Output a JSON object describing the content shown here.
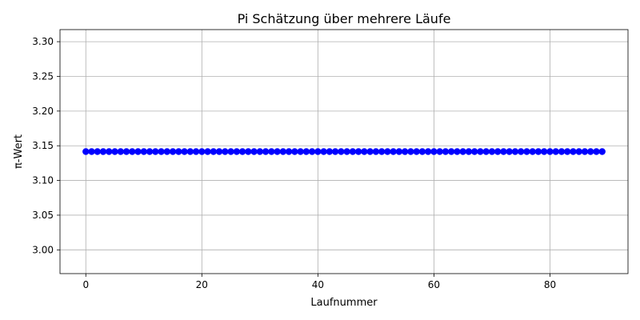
{
  "chart_data": {
    "type": "scatter",
    "title": "Pi Schätzung über mehrere Läufe",
    "xlabel": "Laufnummer",
    "ylabel": "π-Wert",
    "xlim": [
      -4.45,
      93.45
    ],
    "ylim": [
      2.9658,
      3.3174
    ],
    "grid": true,
    "marker": "circle",
    "color": "#0000ff",
    "x_ticks": [
      0,
      20,
      40,
      60,
      80
    ],
    "x_tick_labels": [
      "0",
      "20",
      "40",
      "60",
      "80"
    ],
    "y_ticks": [
      3.0,
      3.05,
      3.1,
      3.15,
      3.2,
      3.25,
      3.3
    ],
    "y_tick_labels": [
      "3.00",
      "3.05",
      "3.10",
      "3.15",
      "3.20",
      "3.25",
      "3.30"
    ],
    "series": [
      {
        "x": [
          0,
          1,
          2,
          3,
          4,
          5,
          6,
          7,
          8,
          9,
          10,
          11,
          12,
          13,
          14,
          15,
          16,
          17,
          18,
          19,
          20,
          21,
          22,
          23,
          24,
          25,
          26,
          27,
          28,
          29,
          30,
          31,
          32,
          33,
          34,
          35,
          36,
          37,
          38,
          39,
          40,
          41,
          42,
          43,
          44,
          45,
          46,
          47,
          48,
          49,
          50,
          51,
          52,
          53,
          54,
          55,
          56,
          57,
          58,
          59,
          60,
          61,
          62,
          63,
          64,
          65,
          66,
          67,
          68,
          69,
          70,
          71,
          72,
          73,
          74,
          75,
          76,
          77,
          78,
          79,
          80,
          81,
          82,
          83,
          84,
          85,
          86,
          87,
          88,
          89
        ],
        "y": [
          3.1416,
          3.1416,
          3.1416,
          3.1416,
          3.1416,
          3.1416,
          3.1416,
          3.1416,
          3.1416,
          3.1416,
          3.1416,
          3.1416,
          3.1416,
          3.1416,
          3.1416,
          3.1416,
          3.1416,
          3.1416,
          3.1416,
          3.1416,
          3.1416,
          3.1416,
          3.1416,
          3.1416,
          3.1416,
          3.1416,
          3.1416,
          3.1416,
          3.1416,
          3.1416,
          3.1416,
          3.1416,
          3.1416,
          3.1416,
          3.1416,
          3.1416,
          3.1416,
          3.1416,
          3.1416,
          3.1416,
          3.1416,
          3.1416,
          3.1416,
          3.1416,
          3.1416,
          3.1416,
          3.1416,
          3.1416,
          3.1416,
          3.1416,
          3.1416,
          3.1416,
          3.1416,
          3.1416,
          3.1416,
          3.1416,
          3.1416,
          3.1416,
          3.1416,
          3.1416,
          3.1416,
          3.1416,
          3.1416,
          3.1416,
          3.1416,
          3.1416,
          3.1416,
          3.1416,
          3.1416,
          3.1416,
          3.1416,
          3.1416,
          3.1416,
          3.1416,
          3.1416,
          3.1416,
          3.1416,
          3.1416,
          3.1416,
          3.1416,
          3.1416,
          3.1416,
          3.1416,
          3.1416,
          3.1416,
          3.1416,
          3.1416,
          3.1416,
          3.1416,
          3.1416
        ]
      }
    ]
  }
}
